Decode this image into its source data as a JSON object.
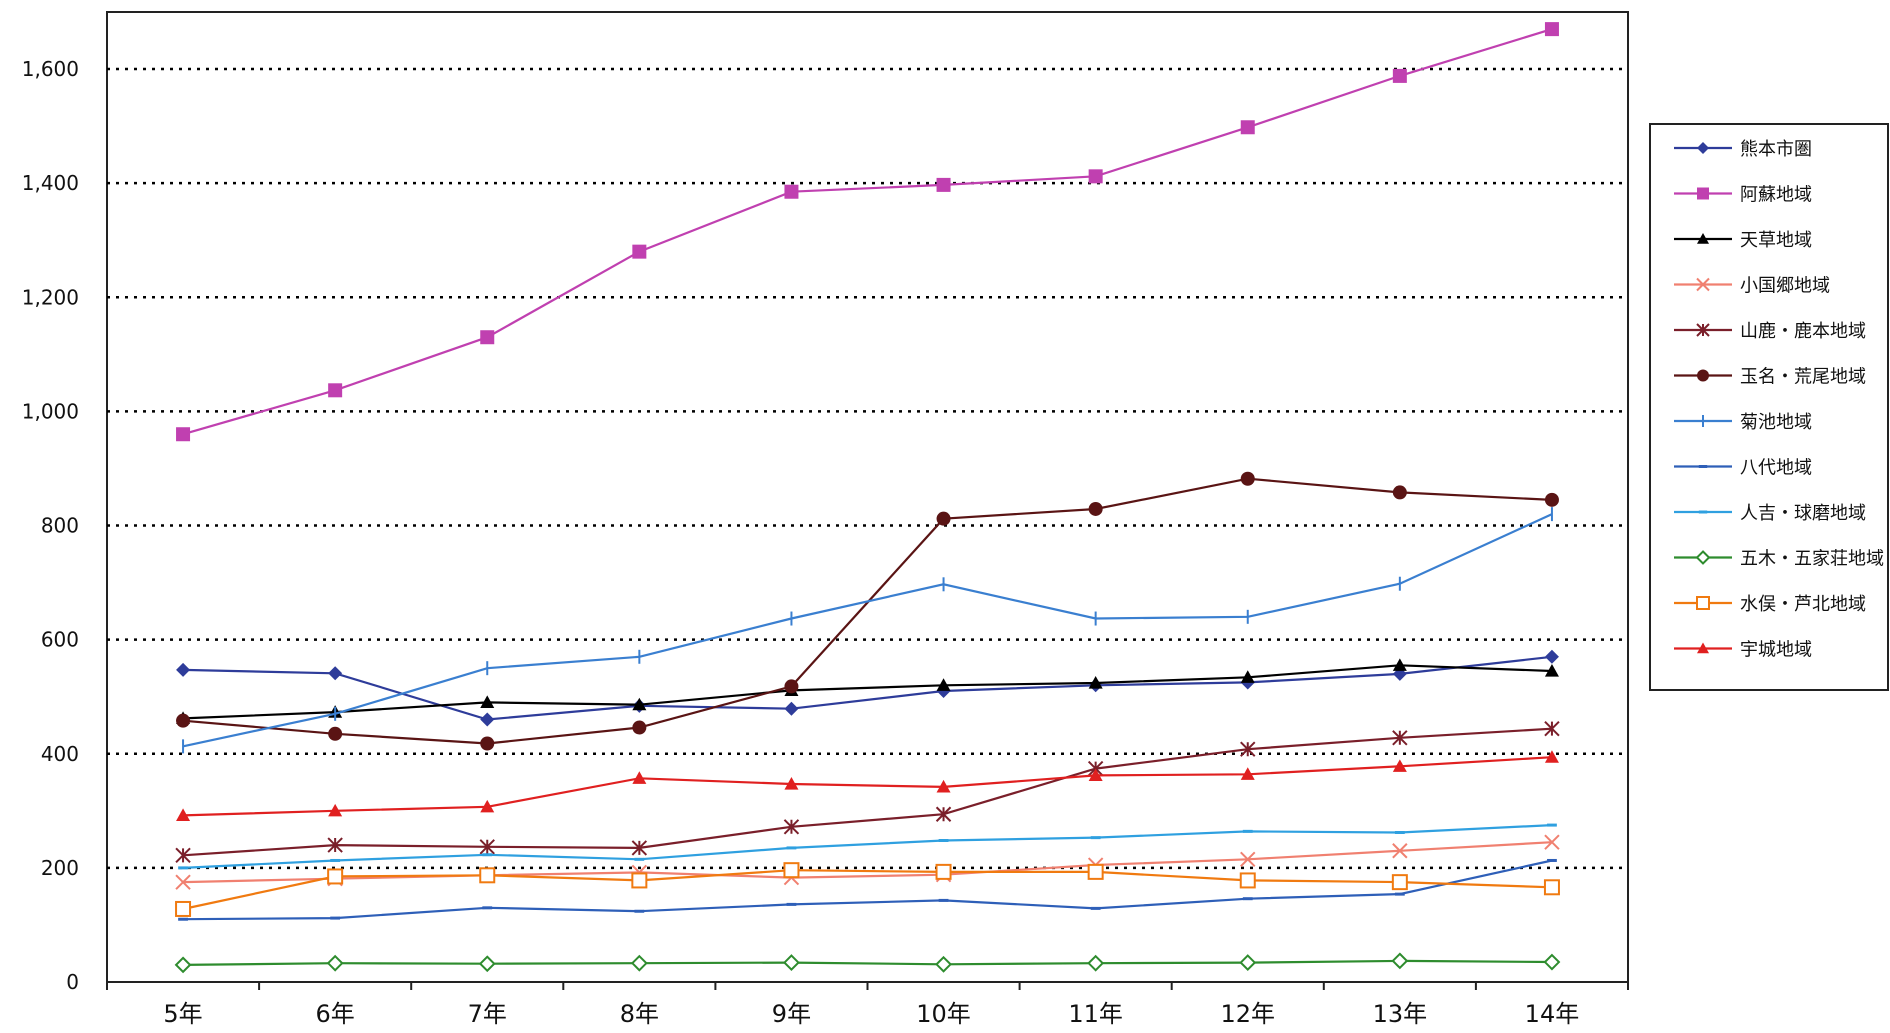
{
  "chart_data": {
    "type": "line",
    "categories": [
      "5年",
      "6年",
      "7年",
      "8年",
      "9年",
      "10年",
      "11年",
      "12年",
      "13年",
      "14年"
    ],
    "ylim": [
      0,
      1700
    ],
    "yticks": [
      0,
      200,
      400,
      600,
      800,
      1000,
      1200,
      1400,
      1600
    ],
    "ytick_labels": [
      "0",
      "200",
      "400",
      "600",
      "800",
      "1,000",
      "1,200",
      "1,400",
      "1,600"
    ],
    "grid": "horizontal dotted at 200-unit ticks",
    "legend_position": "right",
    "series": [
      {
        "name": "熊本市圏",
        "color": "#2E3C9A",
        "marker": "diamond",
        "values": [
          547,
          541,
          460,
          484,
          479,
          510,
          520,
          525,
          540,
          570
        ]
      },
      {
        "name": "阿蘇地域",
        "color": "#C040B0",
        "marker": "square",
        "values": [
          960,
          1037,
          1130,
          1280,
          1385,
          1397,
          1412,
          1498,
          1588,
          1670
        ]
      },
      {
        "name": "天草地域",
        "color": "#000000",
        "marker": "triangle",
        "values": [
          462,
          473,
          490,
          486,
          511,
          520,
          524,
          534,
          555,
          545
        ]
      },
      {
        "name": "小国郷地域",
        "color": "#F08070",
        "marker": "x",
        "values": [
          175,
          181,
          187,
          192,
          183,
          188,
          205,
          215,
          230,
          245
        ]
      },
      {
        "name": "山鹿・鹿本地域",
        "color": "#7A1F2A",
        "marker": "star",
        "values": [
          222,
          240,
          237,
          235,
          272,
          294,
          374,
          408,
          428,
          444
        ]
      },
      {
        "name": "玉名・荒尾地域",
        "color": "#5A1414",
        "marker": "circle",
        "values": [
          458,
          435,
          418,
          446,
          518,
          812,
          829,
          882,
          858,
          845
        ]
      },
      {
        "name": "菊池地域",
        "color": "#3A7FD0",
        "marker": "plus",
        "values": [
          413,
          470,
          550,
          570,
          637,
          697,
          637,
          640,
          698,
          820
        ]
      },
      {
        "name": "八代地域",
        "color": "#2E5FB8",
        "marker": "dash",
        "values": [
          110,
          112,
          130,
          124,
          136,
          143,
          129,
          146,
          154,
          213
        ]
      },
      {
        "name": "人吉・球磨地域",
        "color": "#2FA0E0",
        "marker": "dash",
        "values": [
          200,
          213,
          223,
          215,
          235,
          248,
          253,
          264,
          262,
          275
        ]
      },
      {
        "name": "五木・五家荘地域",
        "color": "#2E8C2E",
        "marker": "open-diamond",
        "values": [
          30,
          33,
          32,
          33,
          34,
          31,
          33,
          34,
          37,
          35
        ]
      },
      {
        "name": "水俣・芦北地域",
        "color": "#F07A10",
        "marker": "open-square",
        "values": [
          128,
          185,
          187,
          178,
          196,
          193,
          193,
          178,
          175,
          166
        ]
      },
      {
        "name": "宇城地域",
        "color": "#E02020",
        "marker": "triangle",
        "values": [
          292,
          300,
          307,
          357,
          347,
          342,
          362,
          364,
          378,
          394
        ]
      }
    ]
  }
}
